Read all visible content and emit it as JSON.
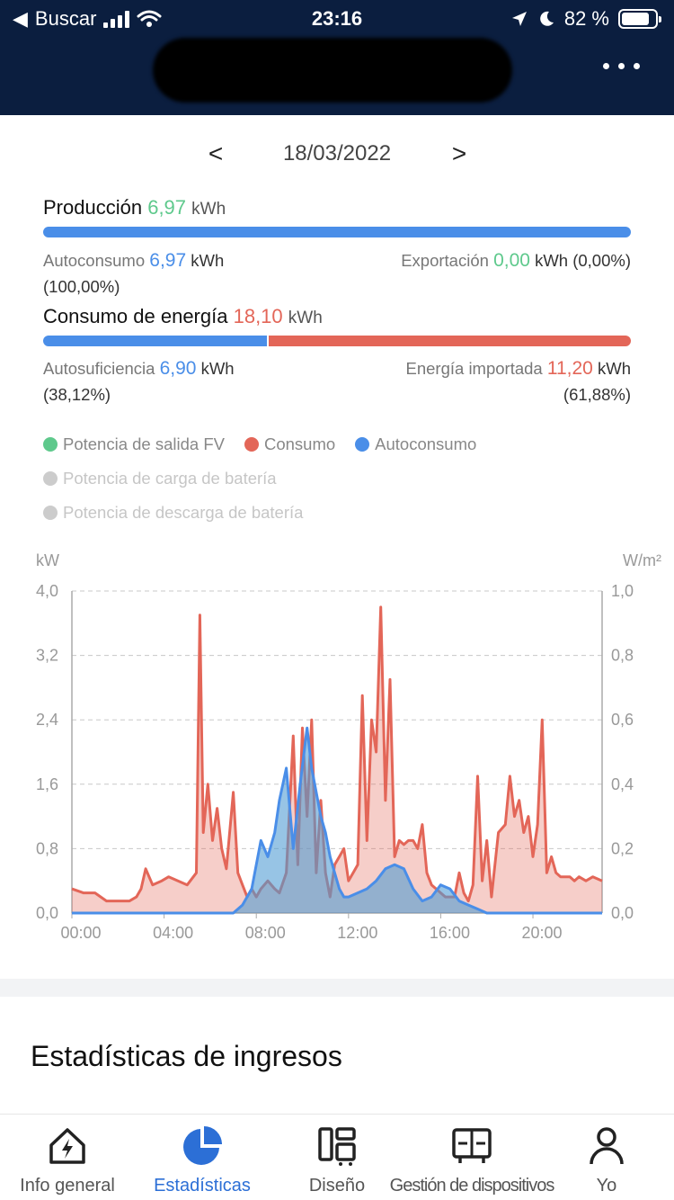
{
  "status_bar": {
    "back_label": "Buscar",
    "time": "23:16",
    "battery": "82 %",
    "battery_level": 0.82
  },
  "date_nav": {
    "prev_label": "<",
    "date": "18/03/2022",
    "next_label": ">"
  },
  "production": {
    "label": "Producción",
    "value": "6,97",
    "unit": "kWh",
    "self_consumption_fraction": 1.0,
    "autoconsumo_label": "Autoconsumo",
    "autoconsumo_value": "6,97",
    "autoconsumo_unit": "kWh",
    "autoconsumo_pct": "(100,00%)",
    "export_label": "Exportación",
    "export_value": "0,00",
    "export_unit": "kWh",
    "export_pct": "(0,00%)"
  },
  "consumption": {
    "label": "Consumo de energía",
    "value": "18,10",
    "unit": "kWh",
    "self_sufficiency_fraction": 0.3812,
    "autosuf_label": "Autosuficiencia",
    "autosuf_value": "6,90",
    "autosuf_unit": "kWh",
    "autosuf_pct": "(38,12%)",
    "import_label": "Energía importada",
    "import_value": "11,20",
    "import_unit": "kWh",
    "import_pct": "(61,88%)"
  },
  "legend": {
    "pv_output": "Potencia de salida FV",
    "consumption": "Consumo",
    "self_consumption": "Autoconsumo",
    "battery_charge": "Potencia de carga de batería",
    "battery_discharge": "Potencia de descarga de batería"
  },
  "colors": {
    "pv": "#5ec98c",
    "consumption": "#e36658",
    "self_consumption": "#4a8ee8",
    "disabled": "#cccccc",
    "header": "#0b1e3f",
    "tab_active": "#2c6fd6"
  },
  "chart_data": {
    "type": "area",
    "y_left_unit": "kW",
    "y_right_unit": "W/m²",
    "ylim": [
      0,
      4.0
    ],
    "y2lim": [
      0,
      1.0
    ],
    "y_ticks": [
      "0,0",
      "0,8",
      "1,6",
      "2,4",
      "3,2",
      "4,0"
    ],
    "y2_ticks": [
      "0,0",
      "0,2",
      "0,4",
      "0,6",
      "0,8",
      "1,0"
    ],
    "x_ticks": [
      "00:00",
      "04:00",
      "08:00",
      "12:00",
      "16:00",
      "20:00"
    ],
    "xlim": [
      0,
      23
    ],
    "grid": "dashed horizontal",
    "series": [
      {
        "name": "Consumo",
        "x": [
          0,
          0.5,
          1,
          1.5,
          2,
          2.5,
          2.8,
          3,
          3.2,
          3.5,
          3.9,
          4.2,
          4.6,
          5,
          5.4,
          5.55,
          5.7,
          5.9,
          6.1,
          6.3,
          6.5,
          6.7,
          7,
          7.2,
          7.4,
          7.6,
          7.8,
          8,
          8.2,
          8.5,
          8.8,
          9,
          9.3,
          9.6,
          9.8,
          10,
          10.2,
          10.4,
          10.6,
          10.8,
          11,
          11.2,
          11.4,
          11.6,
          11.8,
          12,
          12.2,
          12.4,
          12.6,
          12.8,
          13,
          13.2,
          13.4,
          13.6,
          13.8,
          14,
          14.2,
          14.4,
          14.6,
          14.8,
          15,
          15.2,
          15.4,
          15.6,
          15.8,
          16,
          16.2,
          16.4,
          16.6,
          16.8,
          17,
          17.2,
          17.4,
          17.6,
          17.8,
          18,
          18.2,
          18.5,
          18.8,
          19,
          19.2,
          19.4,
          19.6,
          19.8,
          20,
          20.2,
          20.4,
          20.6,
          20.8,
          21,
          21.2,
          21.4,
          21.6,
          21.8,
          22,
          22.3,
          22.6,
          23
        ],
        "values": [
          0.3,
          0.25,
          0.25,
          0.15,
          0.15,
          0.15,
          0.2,
          0.3,
          0.55,
          0.35,
          0.4,
          0.45,
          0.4,
          0.35,
          0.5,
          3.7,
          1.0,
          1.6,
          0.9,
          1.3,
          0.8,
          0.55,
          1.5,
          0.5,
          0.35,
          0.2,
          0.3,
          0.2,
          0.3,
          0.4,
          0.3,
          0.25,
          0.5,
          2.2,
          0.6,
          2.3,
          1.2,
          2.4,
          0.5,
          1.4,
          0.5,
          0.2,
          0.6,
          0.7,
          0.8,
          0.4,
          0.5,
          0.6,
          2.7,
          0.9,
          2.4,
          2.0,
          3.8,
          1.4,
          2.9,
          0.7,
          0.9,
          0.85,
          0.9,
          0.9,
          0.8,
          1.1,
          0.5,
          0.35,
          0.3,
          0.25,
          0.2,
          0.2,
          0.2,
          0.5,
          0.25,
          0.15,
          0.35,
          1.7,
          0.4,
          0.9,
          0.2,
          1.0,
          1.1,
          1.7,
          1.2,
          1.4,
          1.0,
          1.2,
          0.7,
          1.1,
          2.4,
          0.5,
          0.7,
          0.5,
          0.45,
          0.45,
          0.45,
          0.4,
          0.45,
          0.4,
          0.45,
          0.4
        ]
      },
      {
        "name": "Autoconsumo",
        "x": [
          0,
          7,
          7.4,
          7.8,
          8.2,
          8.5,
          8.8,
          9,
          9.3,
          9.6,
          9.9,
          10.2,
          10.4,
          10.6,
          10.8,
          11,
          11.2,
          11.4,
          11.6,
          11.8,
          12,
          12.4,
          12.8,
          13.2,
          13.6,
          14,
          14.4,
          14.8,
          15.2,
          15.6,
          16,
          16.4,
          16.8,
          17.2,
          17.6,
          18,
          18.5,
          23
        ],
        "values": [
          0,
          0,
          0.1,
          0.3,
          0.9,
          0.7,
          1.0,
          1.4,
          1.8,
          0.8,
          1.6,
          2.3,
          1.8,
          1.5,
          1.2,
          1.0,
          0.7,
          0.5,
          0.3,
          0.2,
          0.2,
          0.25,
          0.3,
          0.4,
          0.55,
          0.6,
          0.55,
          0.3,
          0.15,
          0.2,
          0.35,
          0.3,
          0.15,
          0.1,
          0.05,
          0,
          0,
          0
        ]
      },
      {
        "name": "Potencia de salida FV",
        "x": [
          0,
          7,
          7.4,
          7.8,
          8.2,
          8.5,
          8.8,
          9,
          9.3,
          9.6,
          9.9,
          10.2,
          10.4,
          10.6,
          10.8,
          11,
          11.2,
          11.4,
          11.6,
          11.8,
          12,
          12.4,
          12.8,
          13.2,
          13.6,
          14,
          14.4,
          14.8,
          15.2,
          15.6,
          16,
          16.4,
          16.8,
          17.2,
          17.6,
          18,
          18.5,
          23
        ],
        "values": [
          0,
          0,
          0.1,
          0.3,
          0.9,
          0.7,
          1.0,
          1.4,
          1.8,
          0.8,
          1.6,
          2.3,
          1.8,
          1.5,
          1.2,
          1.0,
          0.7,
          0.5,
          0.3,
          0.2,
          0.2,
          0.25,
          0.3,
          0.4,
          0.55,
          0.6,
          0.55,
          0.3,
          0.15,
          0.2,
          0.35,
          0.3,
          0.15,
          0.1,
          0.05,
          0,
          0,
          0
        ]
      }
    ]
  },
  "income": {
    "title": "Estadísticas de ingresos"
  },
  "tabs": [
    {
      "label": "Info general"
    },
    {
      "label": "Estadísticas"
    },
    {
      "label": "Diseño"
    },
    {
      "label": "Gestión de dispositivos"
    },
    {
      "label": "Yo"
    }
  ]
}
